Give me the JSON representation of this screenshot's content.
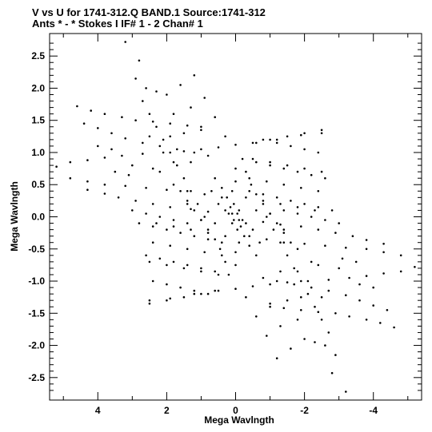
{
  "title_line1": "V vs U for 1741-312.Q BAND.1   Source:1741-312",
  "title_line2": "Ants * - *     Stokes I  IF# 1 - 2  Chan# 1",
  "chart_data": {
    "type": "scatter",
    "title": "V vs U for 1741-312.Q BAND.1   Source:1741-312",
    "subtitle": "Ants * - *     Stokes I  IF# 1 - 2  Chan# 1",
    "xlabel": "Mega Wavlngth",
    "ylabel": "Mega Wavlngth",
    "xlim": [
      5.4,
      -5.4
    ],
    "ylim": [
      -2.85,
      2.85
    ],
    "x_reversed": true,
    "x_ticks": [
      4,
      2,
      0,
      -2,
      -4
    ],
    "x_tick_labels": [
      "4",
      "2",
      "0",
      "-2",
      "-4"
    ],
    "y_ticks": [
      2.5,
      2.0,
      1.5,
      1.0,
      0.5,
      0.0,
      -0.5,
      -1.0,
      -1.5,
      -2.0,
      -2.5
    ],
    "y_tick_labels": [
      "2.5",
      "2.0",
      "1.5",
      "1.0",
      "0.5",
      "0.0",
      "-0.5",
      "-1.0",
      "-1.5",
      "-2.0",
      "-2.5"
    ],
    "grid": false,
    "point_color": "#000000",
    "symmetric": true,
    "points": [
      [
        3.2,
        2.72
      ],
      [
        2.8,
        2.43
      ],
      [
        2.9,
        2.15
      ],
      [
        2.6,
        2.0
      ],
      [
        2.3,
        1.95
      ],
      [
        4.6,
        1.72
      ],
      [
        4.2,
        1.65
      ],
      [
        3.8,
        1.6
      ],
      [
        3.3,
        1.55
      ],
      [
        2.9,
        1.5
      ],
      [
        2.4,
        1.48
      ],
      [
        1.9,
        1.45
      ],
      [
        1.4,
        1.42
      ],
      [
        1.0,
        1.35
      ],
      [
        4.4,
        1.45
      ],
      [
        4.0,
        1.38
      ],
      [
        3.6,
        1.3
      ],
      [
        3.2,
        1.22
      ],
      [
        2.7,
        1.15
      ],
      [
        2.2,
        1.1
      ],
      [
        1.7,
        1.05
      ],
      [
        1.2,
        1.0
      ],
      [
        0.8,
        0.95
      ],
      [
        5.2,
        0.78
      ],
      [
        4.8,
        0.85
      ],
      [
        4.3,
        0.88
      ],
      [
        3.8,
        0.92
      ],
      [
        3.3,
        0.95
      ],
      [
        2.7,
        0.98
      ],
      [
        2.1,
        1.0
      ],
      [
        1.5,
        1.02
      ],
      [
        1.0,
        1.05
      ],
      [
        0.5,
        1.08
      ],
      [
        0.0,
        1.12
      ],
      [
        -0.6,
        1.15
      ],
      [
        -1.2,
        1.2
      ],
      [
        -1.9,
        1.27
      ],
      [
        -2.5,
        1.35
      ],
      [
        4.8,
        0.6
      ],
      [
        4.3,
        0.55
      ],
      [
        3.8,
        0.5
      ],
      [
        3.2,
        0.48
      ],
      [
        2.6,
        0.45
      ],
      [
        2.0,
        0.42
      ],
      [
        1.4,
        0.4
      ],
      [
        0.9,
        0.35
      ],
      [
        0.4,
        0.3
      ],
      [
        4.3,
        0.42
      ],
      [
        3.8,
        0.36
      ],
      [
        3.4,
        0.3
      ],
      [
        2.9,
        0.25
      ],
      [
        2.4,
        0.2
      ],
      [
        1.9,
        0.15
      ],
      [
        1.3,
        0.12
      ],
      [
        0.8,
        0.08
      ],
      [
        1.2,
        2.2
      ],
      [
        1.6,
        2.05
      ],
      [
        2.0,
        1.9
      ],
      [
        0.9,
        1.85
      ],
      [
        1.3,
        1.7
      ],
      [
        1.8,
        1.6
      ],
      [
        0.6,
        1.55
      ],
      [
        1.0,
        1.4
      ],
      [
        1.5,
        1.3
      ],
      [
        0.3,
        1.25
      ],
      [
        2.8,
        -0.1
      ],
      [
        2.4,
        -0.15
      ],
      [
        2.0,
        -0.2
      ],
      [
        1.6,
        -0.25
      ],
      [
        1.2,
        -0.3
      ],
      [
        0.8,
        -0.35
      ],
      [
        0.4,
        -0.4
      ],
      [
        2.6,
        -0.6
      ],
      [
        2.2,
        -0.65
      ],
      [
        1.8,
        -0.7
      ],
      [
        1.4,
        -0.75
      ],
      [
        1.0,
        -0.8
      ],
      [
        0.6,
        -0.85
      ],
      [
        2.4,
        -1.0
      ],
      [
        2.0,
        -1.05
      ],
      [
        1.6,
        -1.1
      ],
      [
        1.2,
        -1.15
      ],
      [
        0.8,
        -1.2
      ],
      [
        2.5,
        -1.3
      ],
      [
        2.0,
        -1.3
      ],
      [
        1.5,
        -1.25
      ],
      [
        1.0,
        -1.2
      ],
      [
        0.5,
        -1.15
      ],
      [
        -0.5,
        0.9
      ],
      [
        -1.0,
        0.85
      ],
      [
        -1.5,
        0.8
      ],
      [
        -2.0,
        0.75
      ],
      [
        -2.5,
        0.7
      ],
      [
        -0.4,
        0.6
      ],
      [
        -0.9,
        0.55
      ],
      [
        -1.4,
        0.5
      ],
      [
        -1.9,
        0.45
      ],
      [
        -2.4,
        0.4
      ],
      [
        -0.3,
        0.3
      ],
      [
        -0.8,
        0.25
      ],
      [
        -1.3,
        0.2
      ],
      [
        -1.8,
        0.15
      ],
      [
        -2.3,
        0.1
      ],
      [
        2.7,
        1.8
      ],
      [
        2.5,
        1.6
      ],
      [
        2.3,
        1.4
      ],
      [
        2.1,
        1.2
      ],
      [
        1.9,
        1.0
      ],
      [
        1.7,
        0.8
      ],
      [
        1.5,
        0.6
      ],
      [
        1.3,
        0.4
      ],
      [
        1.1,
        0.2
      ],
      [
        0.9,
        0.0
      ],
      [
        0.6,
        0.6
      ],
      [
        0.4,
        0.45
      ],
      [
        0.25,
        0.3
      ],
      [
        0.15,
        0.15
      ],
      [
        0.5,
        0.2
      ],
      [
        0.3,
        0.1
      ],
      [
        0.2,
        0.05
      ],
      [
        0.7,
        0.4
      ],
      [
        0.1,
        0.4
      ],
      [
        0.05,
        0.2
      ],
      [
        2.2,
        0.7
      ],
      [
        1.8,
        0.5
      ],
      [
        1.4,
        0.2
      ],
      [
        1.0,
        -0.05
      ],
      [
        0.6,
        -0.1
      ],
      [
        3.0,
        0.1
      ],
      [
        2.6,
        0.05
      ],
      [
        2.2,
        0.0
      ],
      [
        1.8,
        -0.05
      ],
      [
        1.4,
        -0.1
      ],
      [
        -0.2,
        0.9
      ],
      [
        -0.3,
        0.7
      ],
      [
        -0.45,
        0.5
      ],
      [
        -0.6,
        0.35
      ],
      [
        -0.8,
        0.2
      ],
      [
        -1.0,
        0.05
      ],
      [
        -1.2,
        -0.1
      ],
      [
        -1.4,
        -0.25
      ],
      [
        -1.6,
        -0.4
      ],
      [
        0.0,
        0.75
      ],
      [
        0.0,
        0.55
      ],
      [
        0.1,
        0.05
      ],
      [
        -0.1,
        0.1
      ],
      [
        0.05,
        -0.05
      ],
      [
        3.5,
        0.7
      ],
      [
        3.1,
        0.65
      ],
      [
        2.5,
        1.25
      ],
      [
        1.9,
        1.25
      ],
      [
        1.3,
        0.85
      ],
      [
        4.0,
        1.1
      ],
      [
        3.6,
        1.05
      ],
      [
        3.0,
        0.8
      ],
      [
        2.4,
        0.75
      ],
      [
        1.8,
        0.85
      ]
    ]
  }
}
